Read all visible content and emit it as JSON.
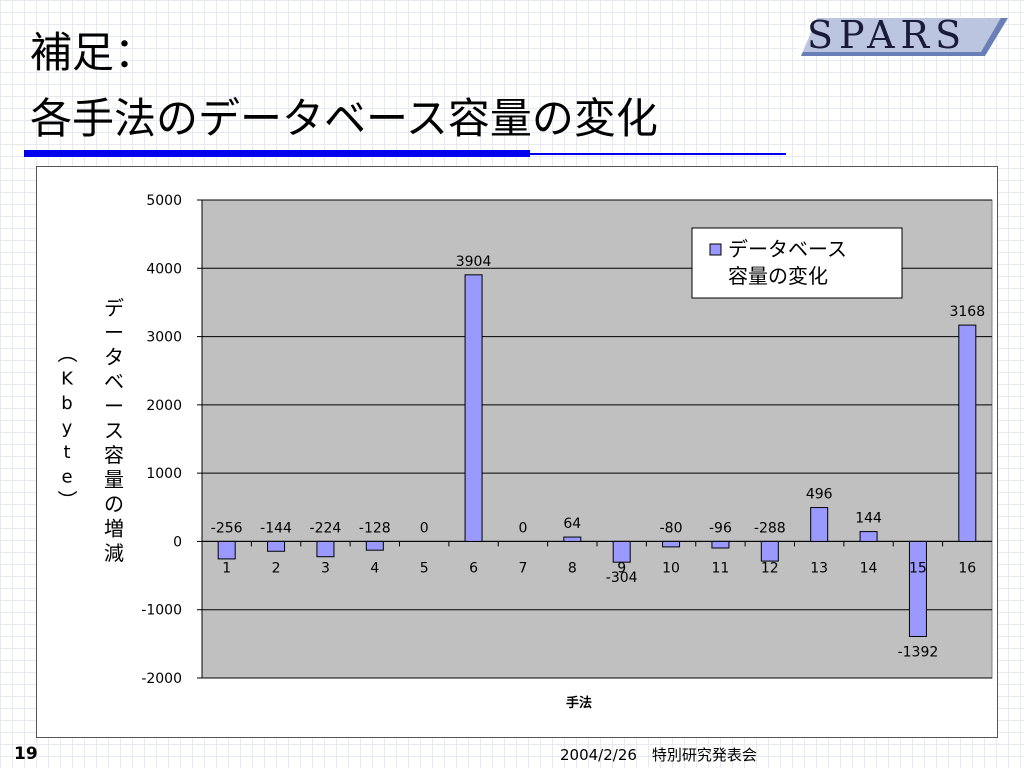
{
  "slide": {
    "title_line1": "補足：",
    "title_line2": "各手法のデータベース容量の変化",
    "logo_text": "SPARS",
    "page_number": "19",
    "footer_text": "2004/2/26　特別研究発表会",
    "accent_color": "#0000ee"
  },
  "chart_data": {
    "type": "bar",
    "categories": [
      "1",
      "2",
      "3",
      "4",
      "5",
      "6",
      "7",
      "8",
      "9",
      "10",
      "11",
      "12",
      "13",
      "14",
      "15",
      "16"
    ],
    "series": [
      {
        "name": "データベース容量の変化",
        "values": [
          -256,
          -144,
          -224,
          -128,
          0,
          3904,
          0,
          64,
          -304,
          -80,
          -96,
          -288,
          496,
          144,
          -1392,
          3168
        ],
        "color": "#9999ff"
      }
    ],
    "data_labels": [
      "-256",
      "-144",
      "-224",
      "-128",
      "0",
      "3904",
      "0",
      "64",
      "-304",
      "-80",
      "-96",
      "-288",
      "496",
      "144",
      "-1392",
      "3168"
    ],
    "legend_text": [
      "データベース",
      "容量の変化"
    ],
    "xlabel": "手法",
    "ylabel_main": "データベース容量の増減",
    "ylabel_unit": "（Kbyte）",
    "ylim": [
      -2000,
      5000
    ],
    "yticks": [
      5000,
      4000,
      3000,
      2000,
      1000,
      0,
      -1000,
      -2000
    ],
    "ytick_labels": [
      "5000",
      "4000",
      "3000",
      "2000",
      "1000",
      "0",
      "-1000",
      "-2000"
    ],
    "grid": true,
    "legend_position": "top-right",
    "plot_background": "#c0c0c0"
  }
}
